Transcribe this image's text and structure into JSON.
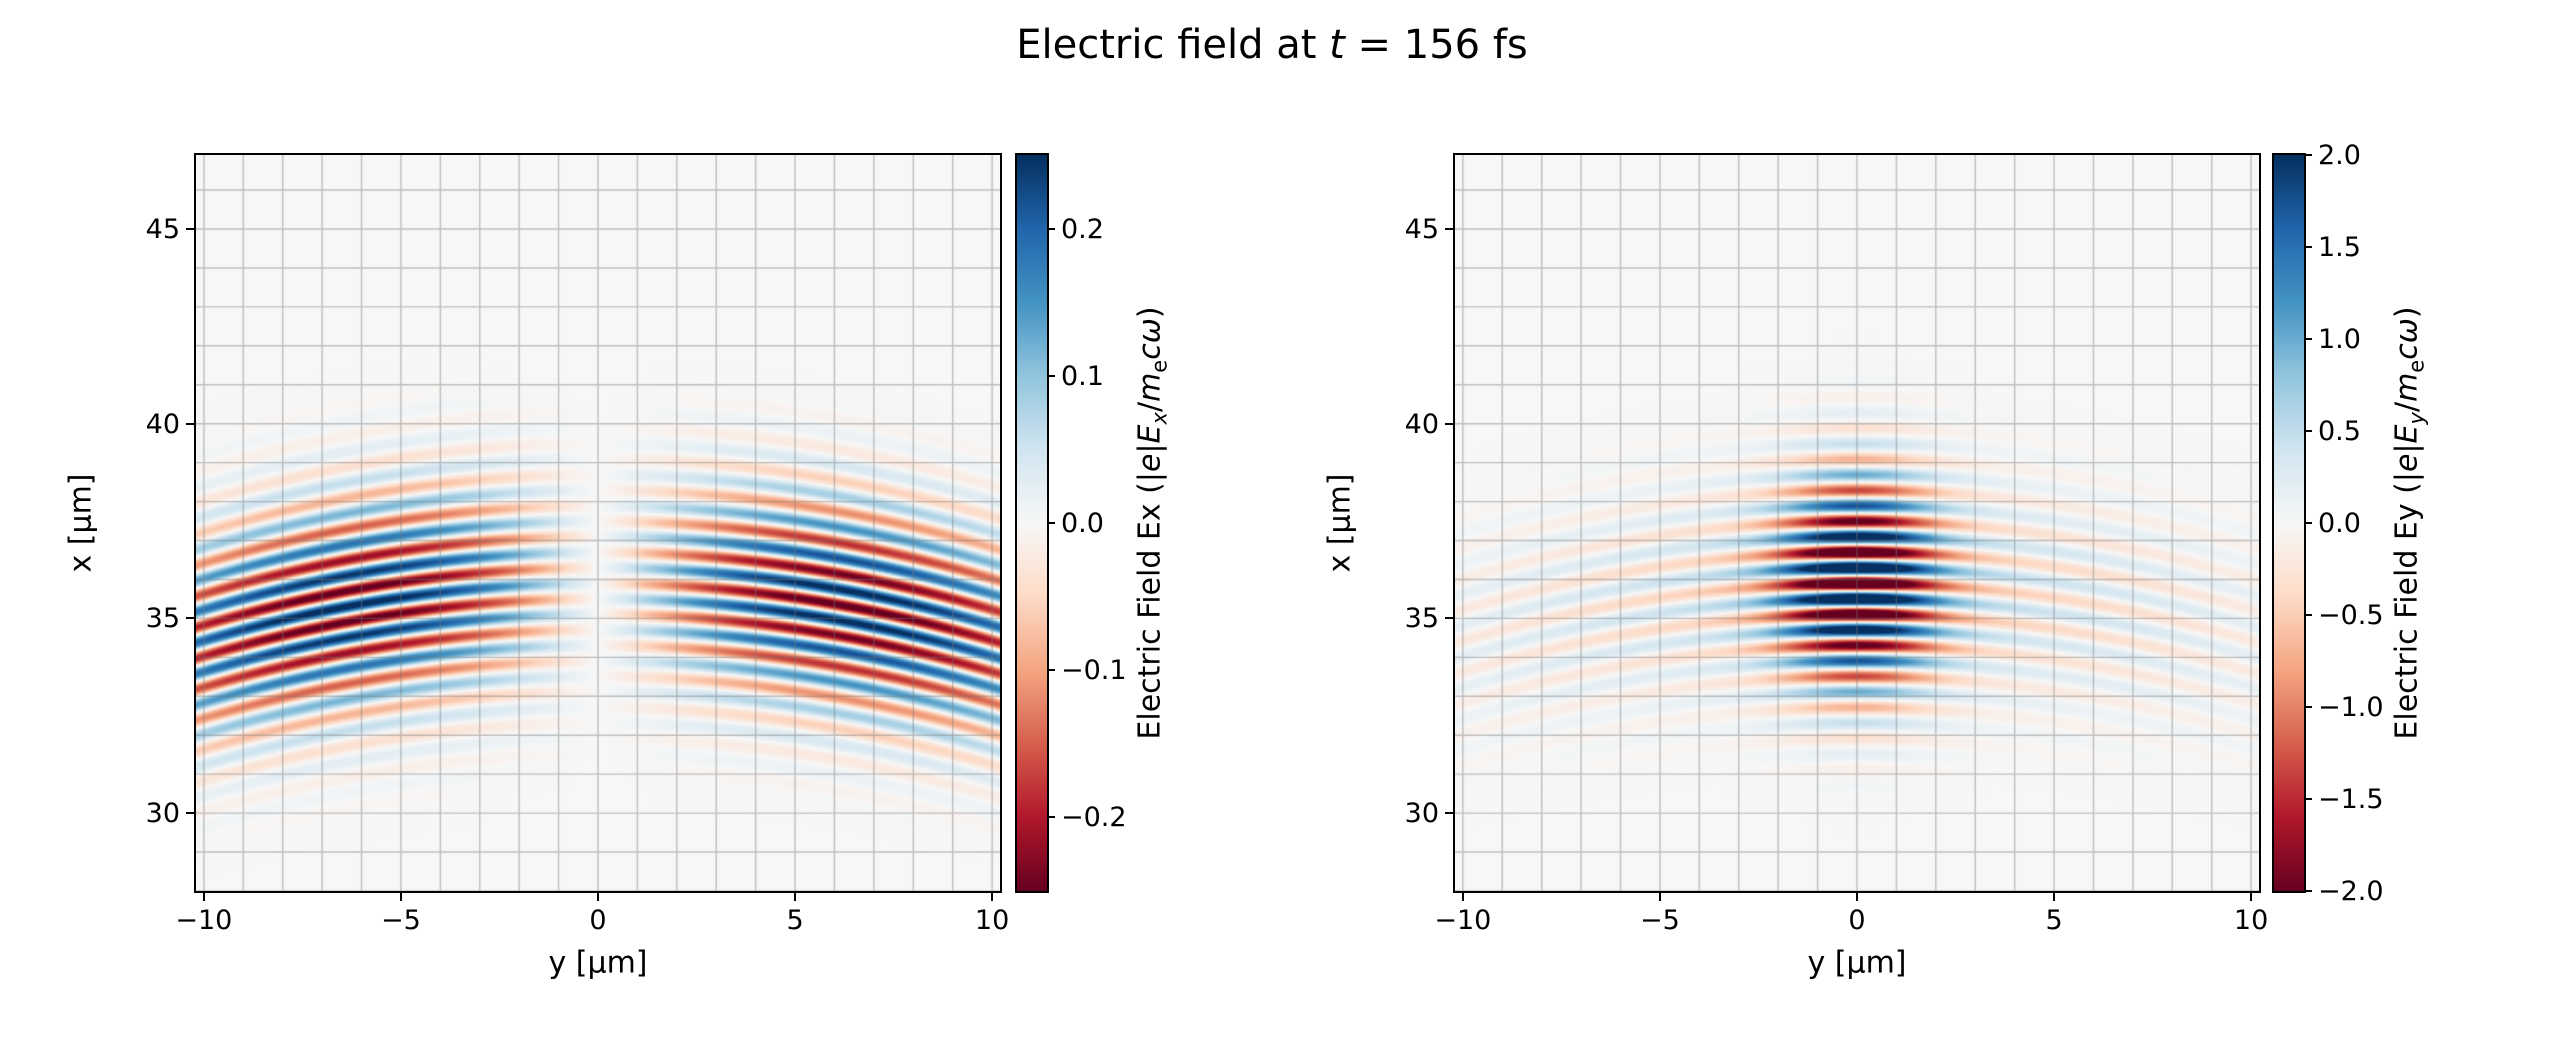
{
  "figure": {
    "title_segments": [
      {
        "text": "Electric field at "
      },
      {
        "text": "t",
        "italic": true
      },
      {
        "text": " = 156 fs"
      }
    ],
    "time_fs": 156,
    "background_color": "#ffffff",
    "text_color": "#000000"
  },
  "chart_data": [
    {
      "type": "heatmap",
      "field_name": "Ex",
      "xlabel": "y [μm]",
      "ylabel": "x [μm]",
      "xlim": [
        -10.2,
        10.2
      ],
      "ylim": [
        28.0,
        46.9
      ],
      "xticks": [
        {
          "v": -10,
          "label": "−10"
        },
        {
          "v": -5,
          "label": "−5"
        },
        {
          "v": 0,
          "label": "0"
        },
        {
          "v": 5,
          "label": "5"
        },
        {
          "v": 10,
          "label": "10"
        }
      ],
      "yticks": [
        {
          "v": 30,
          "label": "30"
        },
        {
          "v": 35,
          "label": "35"
        },
        {
          "v": 40,
          "label": "40"
        },
        {
          "v": 45,
          "label": "45"
        }
      ],
      "grid": {
        "on": true,
        "step_um": 1,
        "color": "#787878",
        "alpha": 0.45
      },
      "colormap": "RdBu",
      "colorbar": {
        "vmin": -0.25,
        "vmax": 0.25,
        "ticks": [
          {
            "v": 0.2,
            "label": "0.2"
          },
          {
            "v": 0.1,
            "label": "0.1"
          },
          {
            "v": 0.0,
            "label": "0.0"
          },
          {
            "v": -0.1,
            "label": "−0.1"
          },
          {
            "v": -0.2,
            "label": "−0.2"
          }
        ],
        "label_segments": [
          {
            "text": "Electric Field Ex (|"
          },
          {
            "text": "e",
            "italic": true
          },
          {
            "text": "|"
          },
          {
            "text": "E",
            "italic": true
          },
          {
            "text": "x",
            "italic": true,
            "sub": true
          },
          {
            "text": "/"
          },
          {
            "text": "m",
            "italic": true
          },
          {
            "text": "e",
            "sub": true
          },
          {
            "text": "c",
            "italic": true
          },
          {
            "text": "ω",
            "italic": true
          },
          {
            "text": ")"
          }
        ]
      },
      "field_model": {
        "description": "Transverse-gradient component of a focused laser pulse: antisymmetric two-lobe profile in y (zero on axis), Gaussian temporal envelope along x, curved wavefronts bending downward toward the transverse edges",
        "wavelength_um": 0.8,
        "pulse_center_x_um": 35.9,
        "pulse_sigma_x_um": 2.6,
        "wavefront_curvature_R_um": 34,
        "profile": "antisymmetric_two_lobe",
        "y_scale_um": 9,
        "peak_amplitude": 0.27,
        "phase0": 3.14159
      }
    },
    {
      "type": "heatmap",
      "field_name": "Ey",
      "xlabel": "y [μm]",
      "ylabel": "x [μm]",
      "xlim": [
        -10.2,
        10.2
      ],
      "ylim": [
        28.0,
        46.9
      ],
      "xticks": [
        {
          "v": -10,
          "label": "−10"
        },
        {
          "v": -5,
          "label": "−5"
        },
        {
          "v": 0,
          "label": "0"
        },
        {
          "v": 5,
          "label": "5"
        },
        {
          "v": 10,
          "label": "10"
        }
      ],
      "yticks": [
        {
          "v": 30,
          "label": "30"
        },
        {
          "v": 35,
          "label": "35"
        },
        {
          "v": 40,
          "label": "40"
        },
        {
          "v": 45,
          "label": "45"
        }
      ],
      "grid": {
        "on": true,
        "step_um": 1,
        "color": "#787878",
        "alpha": 0.45
      },
      "colormap": "RdBu",
      "colorbar": {
        "vmin": -2.0,
        "vmax": 2.0,
        "ticks": [
          {
            "v": 2.0,
            "label": "2.0"
          },
          {
            "v": 1.5,
            "label": "1.5"
          },
          {
            "v": 1.0,
            "label": "1.0"
          },
          {
            "v": 0.5,
            "label": "0.5"
          },
          {
            "v": 0.0,
            "label": "0.0"
          },
          {
            "v": -0.5,
            "label": "−0.5"
          },
          {
            "v": -1.0,
            "label": "−1.0"
          },
          {
            "v": -1.5,
            "label": "−1.5"
          },
          {
            "v": -2.0,
            "label": "−2.0"
          }
        ],
        "label_segments": [
          {
            "text": "Electric Field Ey (|"
          },
          {
            "text": "e",
            "italic": true
          },
          {
            "text": "|"
          },
          {
            "text": "E",
            "italic": true
          },
          {
            "text": "y",
            "italic": true,
            "sub": true
          },
          {
            "text": "/"
          },
          {
            "text": "m",
            "italic": true
          },
          {
            "text": "e",
            "sub": true
          },
          {
            "text": "c",
            "italic": true
          },
          {
            "text": "ω",
            "italic": true
          },
          {
            "text": ")"
          }
        ]
      },
      "field_model": {
        "description": "Main polarization component of a focused laser pulse: strong Gaussian central lobe at y=0 (saturating the ±2 color scale) with weak wide wings, Gaussian envelope along x, curved wavefronts bending downward toward the transverse edges",
        "wavelength_um": 0.8,
        "pulse_center_x_um": 35.9,
        "pulse_sigma_x_um": 2.6,
        "wavefront_curvature_R_um": 34,
        "profile": "gaussian_with_wings",
        "main_amplitude": 2.6,
        "main_waist_um": 1.9,
        "wing_amplitude": 0.55,
        "wing_waist_um": 10,
        "phase0": 3.14159
      }
    }
  ]
}
